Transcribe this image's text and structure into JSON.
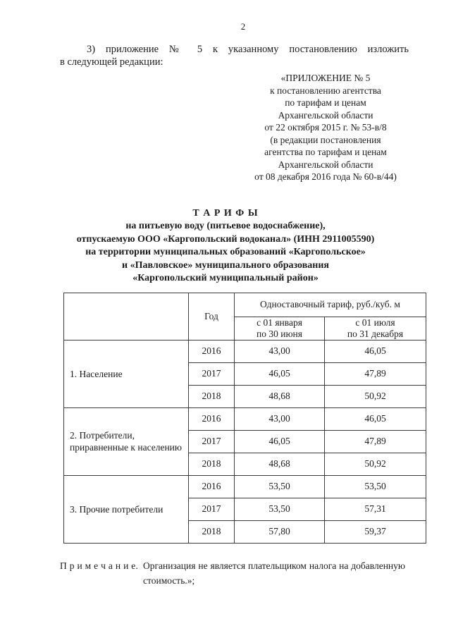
{
  "page": {
    "number": "2"
  },
  "intro": {
    "line1": "3) приложение № 5 к указанному постановлению изложить",
    "line2": "в следующей редакции:"
  },
  "appendix": {
    "lines": [
      "«ПРИЛОЖЕНИЕ № 5",
      "к постановлению агентства",
      "по тарифам и ценам",
      "Архангельской области",
      "от 22 октября 2015 г. № 53-в/8",
      "(в редакции постановления",
      "агентства по тарифам и ценам",
      "Архангельской области",
      "от 08 декабря 2016 года № 60-в/44)"
    ]
  },
  "title": {
    "line1": "Т А Р И Ф Ы",
    "line2": "на питьевую воду (питьевое водоснабжение),",
    "line3": "отпускаемую ООО «Каргопольский водоканал» (ИНН 2911005590)",
    "line4": "на территории муниципальных образований «Каргопольское»",
    "line5": "и «Павловское» муниципального образования",
    "line6": "«Каргопольский муниципальный район»"
  },
  "table": {
    "header": {
      "category": "",
      "year": "Год",
      "tariff_group": "Одноставочный тариф, руб./куб. м",
      "period1": "с 01 января\nпо 30 июня",
      "period2": "с 01 июля\nпо 31 декабря"
    },
    "groups": [
      {
        "category": "1. Население",
        "rows": [
          {
            "year": "2016",
            "first_half": "43,00",
            "second_half": "46,05"
          },
          {
            "year": "2017",
            "first_half": "46,05",
            "second_half": "47,89"
          },
          {
            "year": "2018",
            "first_half": "48,68",
            "second_half": "50,92"
          }
        ]
      },
      {
        "category": "2. Потребители,\nприравненные к населению",
        "rows": [
          {
            "year": "2016",
            "first_half": "43,00",
            "second_half": "46,05"
          },
          {
            "year": "2017",
            "first_half": "46,05",
            "second_half": "47,89"
          },
          {
            "year": "2018",
            "first_half": "48,68",
            "second_half": "50,92"
          }
        ]
      },
      {
        "category": "3. Прочие потребители",
        "rows": [
          {
            "year": "2016",
            "first_half": "53,50",
            "second_half": "53,50"
          },
          {
            "year": "2017",
            "first_half": "53,50",
            "second_half": "57,31"
          },
          {
            "year": "2018",
            "first_half": "57,80",
            "second_half": "59,37"
          }
        ]
      }
    ]
  },
  "note": {
    "label": "П р и м е ч а н и е.",
    "line1": "Организация не является плательщиком налога на добавленную",
    "line2": "стоимость.»;"
  }
}
